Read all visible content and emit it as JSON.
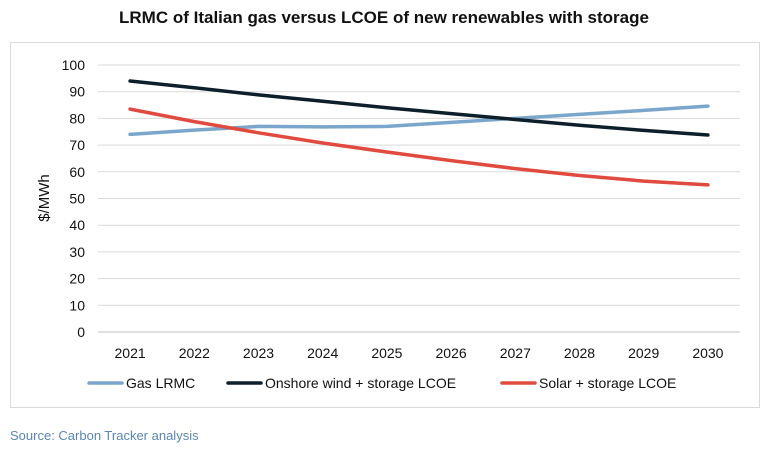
{
  "chart_data": {
    "type": "line",
    "title": "LRMC of Italian gas versus LCOE of new renewables with storage",
    "xlabel": "",
    "ylabel": "$/MWh",
    "categories": [
      "2021",
      "2022",
      "2023",
      "2024",
      "2025",
      "2026",
      "2027",
      "2028",
      "2029",
      "2030"
    ],
    "ylim": [
      0,
      100
    ],
    "yticks": [
      0,
      10,
      20,
      30,
      40,
      50,
      60,
      70,
      80,
      90,
      100
    ],
    "grid": true,
    "legend_position": "bottom",
    "series": [
      {
        "name": "Gas LRMC",
        "color": "#7aa6cc",
        "values": [
          74,
          75.6,
          77,
          76.8,
          77,
          78.5,
          80,
          81.5,
          83,
          84.6
        ]
      },
      {
        "name": "Onshore wind + storage LCOE",
        "color": "#0d1f2b",
        "values": [
          94,
          91.5,
          88.8,
          86.4,
          84,
          81.8,
          79.6,
          77.4,
          75.5,
          73.8
        ]
      },
      {
        "name": "Solar + storage LCOE",
        "color": "#e04a3f",
        "values": [
          83.5,
          78.8,
          74.6,
          70.8,
          67.4,
          64.2,
          61.2,
          58.6,
          56.5,
          55.1
        ]
      }
    ]
  },
  "source": "Source: Carbon Tracker analysis"
}
